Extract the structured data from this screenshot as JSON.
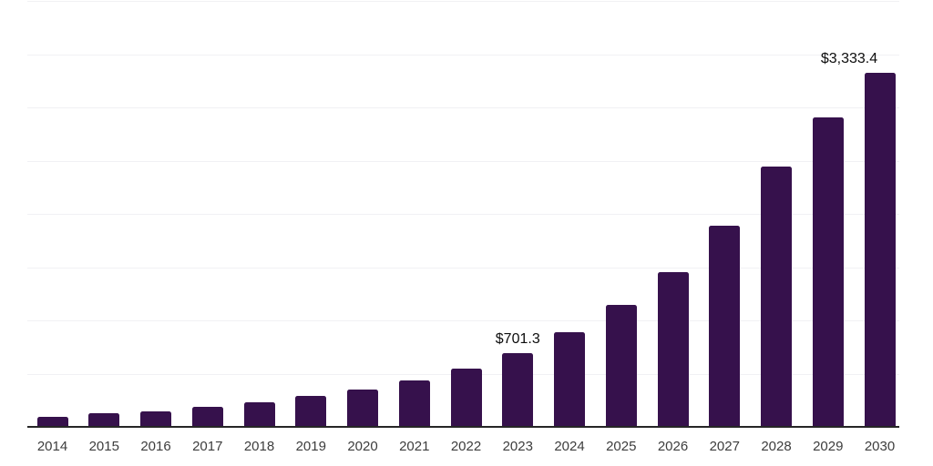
{
  "chart_data": {
    "type": "bar",
    "title": "",
    "xlabel": "",
    "ylabel": "",
    "categories": [
      "2014",
      "2015",
      "2016",
      "2017",
      "2018",
      "2019",
      "2020",
      "2021",
      "2022",
      "2023",
      "2024",
      "2025",
      "2026",
      "2027",
      "2028",
      "2029",
      "2030"
    ],
    "values": [
      100,
      134,
      158,
      194,
      237,
      297,
      357,
      447,
      557,
      701.3,
      898,
      1154,
      1463,
      1898,
      2457,
      2916,
      3333.4
    ],
    "data_labels": {
      "2023": "$701.3",
      "2030": "$3,333.4"
    },
    "ylim": [
      0,
      4000
    ],
    "gridline_step": 500,
    "grid": true,
    "legend": false,
    "y_axis_labels_visible": false
  },
  "colors": {
    "bar": "#36114C",
    "axis_line": "#262626",
    "gridline": "#F1F1F4",
    "tick_label": "#3D3D3D",
    "data_label": "#0D0D0D",
    "background": "#FFFFFF"
  }
}
